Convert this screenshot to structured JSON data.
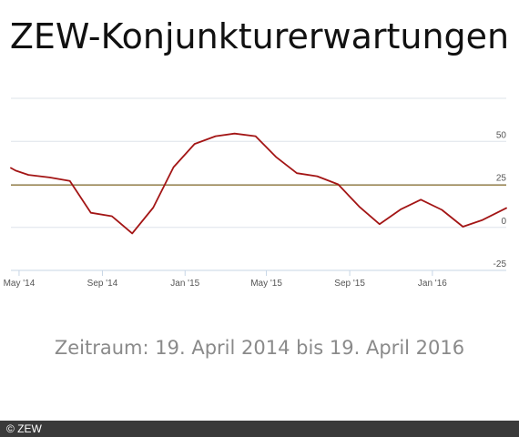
{
  "title": "ZEW-Konjunkturerwartungen",
  "subtitle": "Zeitraum: 19. April 2014 bis 19. April 2016",
  "footer": "© ZEW",
  "colors": {
    "series": "#a31515",
    "reference": "#9c8651",
    "grid": "#dde3ea",
    "axis": "#c7d6e6"
  },
  "chart_data": {
    "type": "line",
    "title": "ZEW-Konjunkturerwartungen",
    "xlabel": "",
    "ylabel": "",
    "ylim": [
      -25,
      75
    ],
    "y_ticks": [
      {
        "value": 50,
        "label": "50"
      },
      {
        "value": 25,
        "label": "25"
      },
      {
        "value": 0,
        "label": "0"
      },
      {
        "value": -25,
        "label": "-25"
      }
    ],
    "x_ticks": [
      {
        "date": "2014-05-01",
        "label": "May '14"
      },
      {
        "date": "2014-09-01",
        "label": "Sep '14"
      },
      {
        "date": "2015-01-01",
        "label": "Jan '15"
      },
      {
        "date": "2015-05-01",
        "label": "May '15"
      },
      {
        "date": "2015-09-01",
        "label": "Sep '15"
      },
      {
        "date": "2016-01-01",
        "label": "Jan '16"
      }
    ],
    "x_range": [
      "2014-04-19",
      "2016-04-19"
    ],
    "grid": true,
    "reference_line": {
      "value": 24.6
    },
    "series": [
      {
        "x": [
          "2014-04-19",
          "2014-04-26",
          "2014-05-15",
          "2014-06-15",
          "2014-07-15",
          "2014-08-15",
          "2014-09-15",
          "2014-10-15",
          "2014-11-15",
          "2014-12-15",
          "2015-01-15",
          "2015-02-15",
          "2015-03-15",
          "2015-04-15",
          "2015-05-15",
          "2015-06-15",
          "2015-07-15",
          "2015-08-15",
          "2015-09-15",
          "2015-10-15",
          "2015-11-15",
          "2015-12-15",
          "2016-01-15",
          "2016-02-15",
          "2016-03-15",
          "2016-04-19"
        ],
        "values": [
          34.5,
          33.0,
          30.5,
          29.0,
          27.0,
          8.5,
          6.5,
          -3.5,
          11.5,
          35.0,
          48.5,
          53.0,
          54.5,
          53.0,
          41.0,
          31.5,
          29.7,
          25.0,
          12.1,
          1.9,
          10.4,
          16.1,
          10.2,
          0.4,
          4.3,
          11.2
        ]
      }
    ]
  }
}
